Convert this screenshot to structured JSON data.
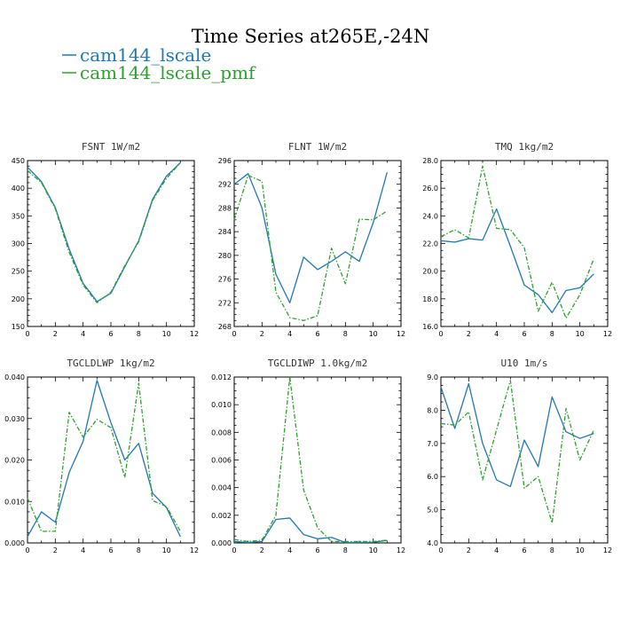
{
  "figure": {
    "title": "Time Series at265E,-24N"
  },
  "legend": [
    {
      "name": "cam144_lscale",
      "color": "#1f77b4",
      "dash": "solid"
    },
    {
      "name": "cam144_lscale_pmf",
      "color": "#2ca02c",
      "dash": "dashdot"
    }
  ],
  "chart_data": [
    {
      "type": "line",
      "title": "FSNT   1W/m2",
      "xlim": [
        0,
        12
      ],
      "xticks": [
        0,
        2,
        4,
        6,
        8,
        10,
        12
      ],
      "xminor": 1,
      "ylim": [
        150,
        450
      ],
      "yticks": [
        150,
        200,
        250,
        300,
        350,
        400,
        450
      ],
      "yminor": 5,
      "ytick_labels": [
        "150",
        "200",
        "250",
        "300",
        "350",
        "400",
        "450"
      ],
      "x": [
        0,
        1,
        2,
        3,
        4,
        5,
        6,
        7,
        8,
        9,
        10,
        11
      ],
      "series": [
        {
          "name": "cam144_lscale",
          "values": [
            438,
            412,
            365,
            290,
            228,
            195,
            210,
            258,
            305,
            380,
            422,
            446
          ]
        },
        {
          "name": "cam144_lscale_pmf",
          "values": [
            432,
            410,
            363,
            284,
            225,
            193,
            212,
            260,
            303,
            378,
            418,
            446
          ]
        }
      ]
    },
    {
      "type": "line",
      "title": "FLNT   1W/m2",
      "xlim": [
        0,
        12
      ],
      "xticks": [
        0,
        2,
        4,
        6,
        8,
        10,
        12
      ],
      "xminor": 1,
      "ylim": [
        268,
        296
      ],
      "yticks": [
        268,
        272,
        276,
        280,
        284,
        288,
        292,
        296
      ],
      "yminor": 4,
      "ytick_labels": [
        "268",
        "272",
        "276",
        "280",
        "284",
        "288",
        "292",
        "296"
      ],
      "x": [
        0,
        1,
        2,
        3,
        4,
        5,
        6,
        7,
        8,
        9,
        10,
        11
      ],
      "series": [
        {
          "name": "cam144_lscale",
          "values": [
            292,
            293.8,
            288,
            276.8,
            272,
            279.7,
            277.6,
            279,
            280.6,
            279,
            285.5,
            294
          ]
        },
        {
          "name": "cam144_lscale_pmf",
          "values": [
            286,
            293.5,
            292.5,
            273.8,
            269.5,
            269,
            269.8,
            281.2,
            275.2,
            286.1,
            286,
            287.5
          ]
        }
      ]
    },
    {
      "type": "line",
      "title": "TMQ   1kg/m2",
      "xlim": [
        0,
        12
      ],
      "xticks": [
        0,
        2,
        4,
        6,
        8,
        10,
        12
      ],
      "xminor": 1,
      "ylim": [
        16,
        28
      ],
      "yticks": [
        16,
        18,
        20,
        22,
        24,
        26,
        28
      ],
      "yminor": 4,
      "ytick_labels": [
        "16.0",
        "18.0",
        "20.0",
        "22.0",
        "24.0",
        "26.0",
        "28.0"
      ],
      "x": [
        0,
        1,
        2,
        3,
        4,
        5,
        6,
        7,
        8,
        9,
        10,
        11
      ],
      "series": [
        {
          "name": "cam144_lscale",
          "values": [
            22.2,
            22.1,
            22.35,
            22.25,
            24.5,
            21.8,
            19.0,
            18.3,
            17.0,
            18.6,
            18.8,
            19.8
          ]
        },
        {
          "name": "cam144_lscale_pmf",
          "values": [
            22.5,
            23.0,
            22.4,
            27.6,
            23.1,
            23.0,
            21.7,
            17.1,
            19.2,
            16.6,
            18.3,
            20.9
          ]
        }
      ]
    },
    {
      "type": "line",
      "title": "TGCLDLWP   1kg/m2",
      "xlim": [
        0,
        12
      ],
      "xticks": [
        0,
        2,
        4,
        6,
        8,
        10,
        12
      ],
      "xminor": 1,
      "ylim": [
        0,
        0.04
      ],
      "yticks": [
        0,
        0.01,
        0.02,
        0.03,
        0.04
      ],
      "yminor": 4,
      "ytick_labels": [
        "0.000",
        "0.010",
        "0.020",
        "0.030",
        "0.040"
      ],
      "x": [
        0,
        1,
        2,
        3,
        4,
        5,
        6,
        7,
        8,
        9,
        10,
        11
      ],
      "series": [
        {
          "name": "cam144_lscale",
          "values": [
            0.0015,
            0.0075,
            0.005,
            0.017,
            0.0245,
            0.0392,
            0.029,
            0.02,
            0.024,
            0.012,
            0.0085,
            0.0015
          ]
        },
        {
          "name": "cam144_lscale_pmf",
          "values": [
            0.0108,
            0.0028,
            0.0028,
            0.0315,
            0.0255,
            0.0298,
            0.0278,
            0.0158,
            0.0385,
            0.0102,
            0.0088,
            0.0028
          ]
        }
      ]
    },
    {
      "type": "line",
      "title": "TGCLDIWP   1.0kg/m2",
      "xlim": [
        0,
        12
      ],
      "xticks": [
        0,
        2,
        4,
        6,
        8,
        10,
        12
      ],
      "xminor": 1,
      "ylim": [
        0,
        0.012
      ],
      "yticks": [
        0,
        0.002,
        0.004,
        0.006,
        0.008,
        0.01,
        0.012
      ],
      "yminor": 4,
      "ytick_labels": [
        "0.000",
        "0.002",
        "0.004",
        "0.006",
        "0.008",
        "0.010",
        "0.012"
      ],
      "x": [
        0,
        1,
        2,
        3,
        4,
        5,
        6,
        7,
        8,
        9,
        10,
        11
      ],
      "series": [
        {
          "name": "cam144_lscale",
          "values": [
            0.0001,
            3e-05,
            0.0001,
            0.0017,
            0.0018,
            0.0006,
            0.0003,
            0.0004,
            3e-05,
            3e-05,
            5e-05,
            0.00018
          ]
        },
        {
          "name": "cam144_lscale_pmf",
          "values": [
            0.00025,
            0.0001,
            0.0002,
            0.002,
            0.012,
            0.0038,
            0.0011,
            0.0001,
            0.0001,
            0.0001,
            0.0001,
            0.0002
          ]
        }
      ]
    },
    {
      "type": "line",
      "title": "U10   1m/s",
      "xlim": [
        0,
        12
      ],
      "xticks": [
        0,
        2,
        4,
        6,
        8,
        10,
        12
      ],
      "xminor": 1,
      "ylim": [
        4,
        9
      ],
      "yticks": [
        4,
        5,
        6,
        7,
        8,
        9
      ],
      "yminor": 4,
      "ytick_labels": [
        "4.0",
        "5.0",
        "6.0",
        "7.0",
        "8.0",
        "9.0"
      ],
      "x": [
        0,
        1,
        2,
        3,
        4,
        5,
        6,
        7,
        8,
        9,
        10,
        11
      ],
      "series": [
        {
          "name": "cam144_lscale",
          "values": [
            8.7,
            7.45,
            8.8,
            7.0,
            5.9,
            5.7,
            7.1,
            6.3,
            8.4,
            7.35,
            7.15,
            7.3
          ]
        },
        {
          "name": "cam144_lscale_pmf",
          "values": [
            7.6,
            7.55,
            7.95,
            5.9,
            7.4,
            8.9,
            5.65,
            6.0,
            4.6,
            8.05,
            6.5,
            7.4
          ]
        }
      ]
    }
  ]
}
